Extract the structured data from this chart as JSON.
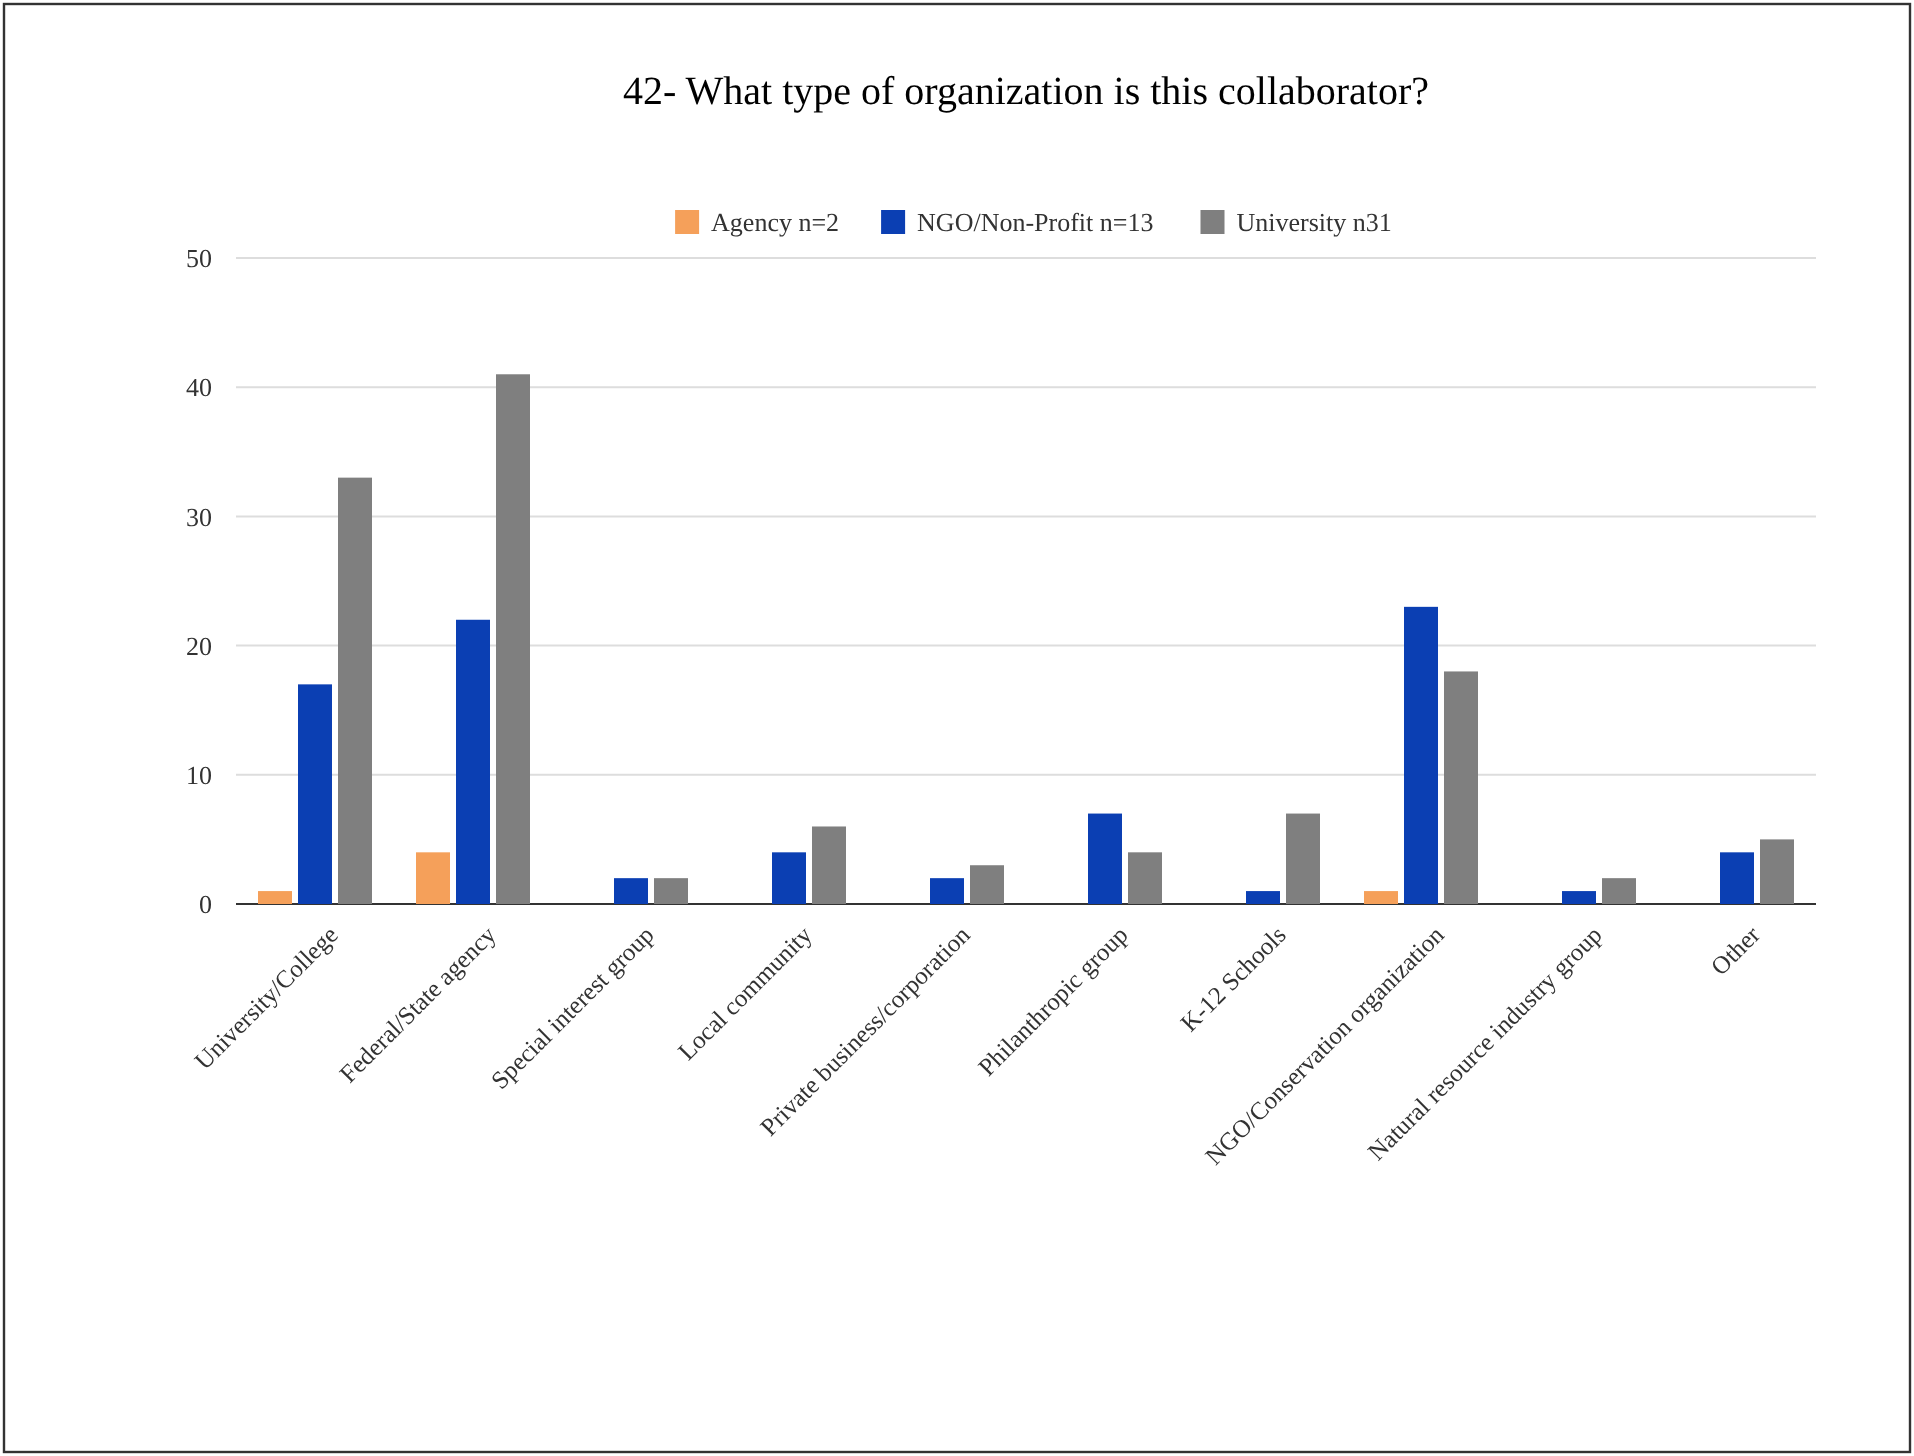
{
  "chart_data": {
    "type": "bar",
    "title": "42- What type of organization is this collaborator?",
    "categories": [
      "University/College",
      "Federal/State agency",
      "Special interest group",
      "Local community",
      "Private business/corporation",
      "Philanthropic group",
      "K-12 Schools",
      "NGO/Conservation organization",
      "Natural resource industry group",
      "Other"
    ],
    "series": [
      {
        "name": "Agency n=2",
        "color": "#f5a05a",
        "values": [
          1,
          4,
          0,
          0,
          0,
          0,
          0,
          1,
          0,
          0
        ]
      },
      {
        "name": "NGO/Non-Profit n=13",
        "color": "#0b3fb3",
        "values": [
          17,
          22,
          2,
          4,
          2,
          7,
          1,
          23,
          1,
          4
        ]
      },
      {
        "name": "University n31",
        "color": "#7f7f7f",
        "values": [
          33,
          41,
          2,
          6,
          3,
          4,
          7,
          18,
          2,
          5
        ]
      }
    ],
    "ylim": [
      0,
      50
    ],
    "yticks": [
      0,
      10,
      20,
      30,
      40,
      50
    ],
    "grid": "y",
    "legend": "top"
  }
}
